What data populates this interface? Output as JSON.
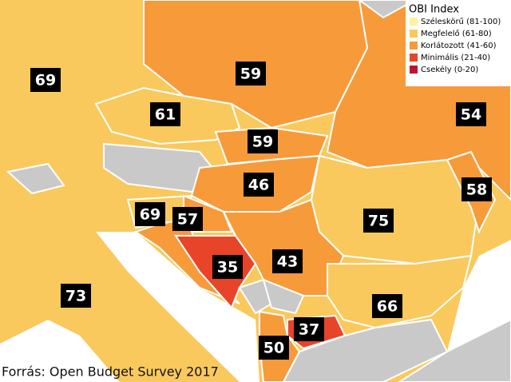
{
  "legend": {
    "title": "OBI Index",
    "items": [
      {
        "label": "Széleskörű (81-100)",
        "color": "#fdf3a0"
      },
      {
        "label": "Megfelelő (61-80)",
        "color": "#f9c95e"
      },
      {
        "label": "Korlátozott (41-60)",
        "color": "#f79a3a"
      },
      {
        "label": "Minimális (21-40)",
        "color": "#e8442a"
      },
      {
        "label": "Csekély (0-20)",
        "color": "#c0142e"
      }
    ]
  },
  "labels": [
    69,
    59,
    61,
    54,
    59,
    46,
    58,
    69,
    57,
    75,
    43,
    35,
    73,
    66,
    37,
    50
  ],
  "source": "Forrás: Open Budget Survey 2017"
}
